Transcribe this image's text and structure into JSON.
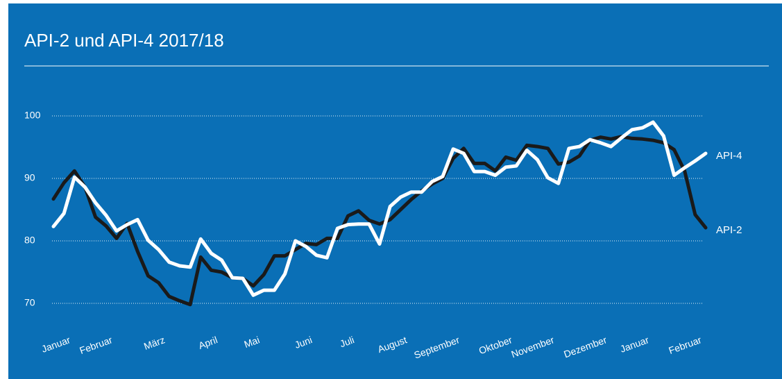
{
  "chart_data": {
    "type": "line",
    "title": "API-2 und API-4 2017/18",
    "categories": [
      "Januar",
      null,
      null,
      null,
      "Februar",
      null,
      null,
      null,
      null,
      "März",
      null,
      null,
      null,
      null,
      "April",
      null,
      null,
      null,
      "Mai",
      null,
      null,
      null,
      null,
      "Juni",
      null,
      null,
      null,
      "Juli",
      null,
      null,
      null,
      null,
      "August",
      null,
      null,
      null,
      null,
      "September",
      null,
      null,
      null,
      null,
      "Oktober",
      null,
      null,
      null,
      "November",
      null,
      null,
      null,
      null,
      "Dezember",
      null,
      null,
      null,
      "Januar",
      null,
      null,
      null,
      null,
      "Februar",
      null,
      null
    ],
    "series": [
      {
        "name": "API-2",
        "color": "#1a1a1a",
        "values": [
          86.7,
          89.3,
          91.2,
          88.6,
          83.8,
          82.4,
          80.4,
          82.8,
          78.3,
          74.4,
          73.3,
          71.1,
          70.4,
          69.8,
          77.4,
          75.3,
          75,
          74.1,
          74,
          72.8,
          74.6,
          77.6,
          77.6,
          78.6,
          79.6,
          79.4,
          80.4,
          80.4,
          84,
          84.8,
          83.3,
          82.7,
          83.4,
          85,
          86.6,
          88,
          89.1,
          90,
          93.2,
          94.8,
          92.4,
          92.4,
          91.2,
          93.4,
          92.9,
          95.3,
          95.1,
          94.8,
          92.3,
          92.6,
          93.6,
          96.1,
          96.6,
          96.3,
          96.7,
          96.4,
          96.3,
          96.1,
          95.7,
          94.6,
          91.2,
          84.2,
          82.1
        ]
      },
      {
        "name": "API-4",
        "color": "#ffffff",
        "values": [
          82.3,
          84.4,
          90.2,
          88.6,
          86.1,
          84.1,
          81.6,
          82.6,
          83.4,
          80.1,
          78.6,
          76.6,
          76,
          75.8,
          80.3,
          78,
          76.9,
          74.1,
          74,
          71.3,
          72.1,
          72.1,
          74.7,
          80,
          79.1,
          77.7,
          77.3,
          82,
          82.6,
          82.7,
          82.7,
          79.5,
          85.5,
          87,
          87.8,
          87.8,
          89.5,
          90.3,
          94.7,
          94,
          91.1,
          91.1,
          90.5,
          91.8,
          92,
          94.5,
          93,
          90.1,
          89.2,
          94.8,
          95.1,
          96.2,
          95.7,
          95.1,
          96.5,
          97.8,
          98.1,
          99,
          96.8,
          90.5,
          91.7,
          92.8,
          94
        ]
      }
    ],
    "annotations": [
      "API-4",
      "API-2"
    ],
    "ylim": [
      70,
      100
    ],
    "yticks": [
      70,
      80,
      90,
      100
    ],
    "grid": true
  }
}
